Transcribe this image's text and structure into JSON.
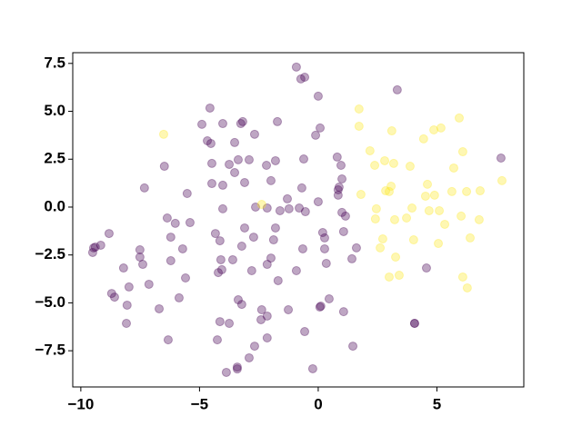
{
  "chart_data": {
    "type": "scatter",
    "xlim": [
      -10.34,
      8.66
    ],
    "ylim": [
      -9.39,
      8.06
    ],
    "xticks": [
      {
        "value": -10,
        "label": "−10"
      },
      {
        "value": -5,
        "label": "−5"
      },
      0,
      5
    ],
    "yticks": [
      {
        "value": -7.5,
        "label": "−7.5"
      },
      {
        "value": -5,
        "label": "−5.0"
      },
      {
        "value": -2.5,
        "label": "−2.5"
      },
      {
        "value": 0,
        "label": "0.0"
      },
      2.5,
      {
        "value": 5,
        "label": "5.0"
      },
      7.5
    ],
    "grid": false,
    "alpha": 0.35,
    "series": [
      {
        "color": "#440154",
        "x": [
          -0.92,
          -0.57,
          -0.73,
          0,
          -4.56,
          -4.9,
          -4.02,
          -3.18,
          -3.26,
          -1.72,
          0.08,
          -4.67,
          -4.52,
          -3.52,
          -2.68,
          -0.11,
          -6.48,
          -4.48,
          -3.75,
          -3.37,
          -2.91,
          -2.18,
          -1.8,
          -0.61,
          0.8,
          0.96,
          -7.32,
          -5.52,
          -4.48,
          -4.02,
          -3.52,
          -3.1,
          -1.99,
          -1.3,
          -0.69,
          0,
          0.84,
          0.84,
          1,
          0.88,
          -6.36,
          -6.02,
          -5.4,
          -4.02,
          -2.64,
          -2.15,
          -1.61,
          -1.23,
          -0.8,
          -0.54,
          1,
          1.15,
          -8.81,
          -9.16,
          -9.39,
          -9.46,
          -9.5,
          -7.51,
          -7.51,
          -7.39,
          -6.21,
          -5.71,
          -6.21,
          -4.33,
          -4.14,
          -3.1,
          -3.22,
          -2.72,
          -1.8,
          -1.88,
          -0.65,
          0.19,
          0.27,
          0.27,
          1.07,
          1.61,
          -8.2,
          -7.97,
          -7.13,
          -5.59,
          -4.1,
          -4.06,
          -4.21,
          -3.6,
          -2.8,
          -2.15,
          -1.99,
          -1.69,
          -0.92,
          0.34,
          1.42,
          -8.7,
          -8.58,
          -8.05,
          -8.08,
          -6.7,
          -5.86,
          -4.14,
          -3.37,
          -3.22,
          -3.75,
          -2.38,
          -2.41,
          -2.15,
          -1.26,
          0.11,
          0.07,
          0.46,
          1.07,
          -6.32,
          -4.25,
          -2.15,
          -0.57,
          1.46,
          -2.68,
          -2.91,
          -3.41,
          -3.41,
          -3.87,
          -0.23,
          4.06,
          4.06,
          4.56,
          7.7,
          3.33
        ],
        "y": [
          7.31,
          6.78,
          6.69,
          5.79,
          5.17,
          4.32,
          4.36,
          4.46,
          4.36,
          4.46,
          4.13,
          3.46,
          3.32,
          3.37,
          3.8,
          3.75,
          2.13,
          2.28,
          2.23,
          2.47,
          2.47,
          2.18,
          2.42,
          2.51,
          2.61,
          2.18,
          1,
          0.71,
          1.23,
          1.14,
          1.8,
          1.28,
          1.38,
          0.43,
          1,
          0.28,
          0.9,
          0.62,
          1.47,
          1.04,
          -0.57,
          -0.85,
          -0.81,
          -0.09,
          0,
          -0.05,
          -0.19,
          -0.09,
          -0.05,
          -0.24,
          -0.28,
          -0.47,
          -1.38,
          -1.99,
          -2.09,
          -2.13,
          -2.37,
          -2.23,
          -2.61,
          -2.99,
          -1.57,
          -2.18,
          -2.8,
          -1.38,
          -1.76,
          -1.09,
          -2.04,
          -1.57,
          -1.09,
          -1.71,
          -2.18,
          -1.33,
          -1.61,
          -2.18,
          -1.28,
          -2.13,
          -3.18,
          -4.17,
          -4.03,
          -3.7,
          -2.75,
          -3.27,
          -3.42,
          -2.75,
          -3.32,
          -2.99,
          -2.66,
          -3.84,
          -3.32,
          -2.94,
          -2.7,
          -4.51,
          -4.7,
          -5.12,
          -6.07,
          -5.31,
          -4.74,
          -5.98,
          -4.84,
          -5.08,
          -6.07,
          -5.36,
          -5.88,
          -5.69,
          -5.36,
          -5.17,
          -5.22,
          -4.79,
          -5.46,
          -6.93,
          -6.93,
          -6.83,
          -6.5,
          -7.26,
          -7.26,
          -7.87,
          -8.35,
          -8.45,
          -8.63,
          -8.44,
          -6.07,
          -6.07,
          -3.18,
          2.56,
          6.12
        ]
      },
      {
        "color": "#fde725",
        "x": [
          1.72,
          1.72,
          3.1,
          2.18,
          2.38,
          2.8,
          3.18,
          1.8,
          2.84,
          2.99,
          3.07,
          3.87,
          4.44,
          4.87,
          5.17,
          5.94,
          6.09,
          5.71,
          6.82,
          6.25,
          5.63,
          4.6,
          4.52,
          4.9,
          -2.38,
          -6.51,
          2.45,
          2.41,
          3.95,
          3.72,
          3.22,
          4.67,
          5.1,
          5.33,
          6.02,
          6.78,
          2.72,
          4.02,
          5.06,
          6.4,
          2.61,
          3.26,
          2.99,
          3.41,
          6.09,
          6.28,
          7.74
        ],
        "y": [
          5.12,
          4.22,
          3.98,
          2.94,
          2.18,
          2.42,
          2.28,
          0.66,
          0.85,
          0.81,
          1.09,
          2.13,
          3.56,
          4.03,
          4.13,
          4.65,
          2.89,
          2.04,
          0.85,
          0.81,
          0.81,
          1.19,
          0.57,
          0.62,
          0.14,
          3.8,
          -0.09,
          -0.62,
          -0.05,
          -0.57,
          -0.66,
          -0.19,
          -0.19,
          -0.9,
          -0.47,
          -0.66,
          -1.66,
          -1.71,
          -1.9,
          -1.61,
          -2.13,
          -2.61,
          -3.65,
          -3.56,
          -3.65,
          -4.22,
          1.38
        ]
      }
    ]
  }
}
